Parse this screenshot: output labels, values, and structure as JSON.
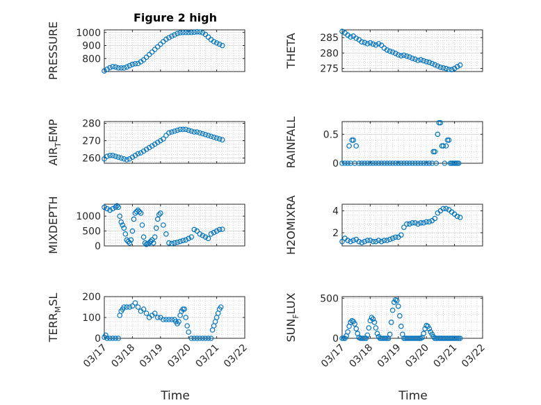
{
  "figure": {
    "title": "Figure 2 high",
    "time_label": "Time",
    "date_ticks": [
      "03/17",
      "03/18",
      "03/19",
      "03/20",
      "03/21",
      "03/22"
    ],
    "marker_color": "#0072BD"
  },
  "chart_data": [
    {
      "type": "scatter",
      "name": "pressure",
      "ylabel": "PRESSURE",
      "ylim": [
        700,
        1020
      ],
      "yticks": [
        800,
        900,
        1000
      ],
      "xlim": [
        0,
        5
      ],
      "x": [
        0.0,
        0.1,
        0.2,
        0.3,
        0.4,
        0.5,
        0.6,
        0.7,
        0.8,
        0.9,
        1.0,
        1.1,
        1.2,
        1.3,
        1.4,
        1.5,
        1.6,
        1.7,
        1.8,
        1.9,
        2.0,
        2.1,
        2.2,
        2.3,
        2.4,
        2.5,
        2.6,
        2.7,
        2.8,
        2.9,
        3.0,
        3.1,
        3.2,
        3.3,
        3.4,
        3.5,
        3.6,
        3.7,
        3.8,
        3.9,
        4.0,
        4.1,
        4.2
      ],
      "y": [
        705,
        718,
        730,
        738,
        735,
        728,
        728,
        728,
        735,
        745,
        755,
        760,
        762,
        775,
        790,
        810,
        830,
        850,
        870,
        890,
        910,
        930,
        948,
        960,
        972,
        982,
        992,
        998,
        1000,
        1000,
        1000,
        1000,
        1002,
        1005,
        1004,
        998,
        985,
        965,
        945,
        930,
        920,
        910,
        900
      ]
    },
    {
      "type": "scatter",
      "name": "theta",
      "ylabel": "THETA",
      "ylim": [
        274,
        287.5
      ],
      "yticks": [
        275,
        280,
        285
      ],
      "xlim": [
        0,
        5
      ],
      "x": [
        0.0,
        0.1,
        0.2,
        0.3,
        0.4,
        0.5,
        0.6,
        0.7,
        0.8,
        0.9,
        1.0,
        1.1,
        1.2,
        1.3,
        1.4,
        1.5,
        1.6,
        1.7,
        1.8,
        1.9,
        2.0,
        2.1,
        2.2,
        2.3,
        2.4,
        2.5,
        2.6,
        2.7,
        2.8,
        2.9,
        3.0,
        3.1,
        3.2,
        3.3,
        3.4,
        3.5,
        3.6,
        3.7,
        3.8,
        3.9,
        4.0,
        4.1,
        4.2
      ],
      "y": [
        287,
        286.5,
        285.8,
        285.2,
        285.5,
        284.8,
        284.3,
        283.6,
        283.4,
        283.0,
        283.3,
        282.9,
        282.6,
        283.0,
        282.5,
        281.6,
        281.0,
        280.6,
        280.3,
        279.9,
        279.4,
        279.1,
        279.3,
        279.0,
        278.7,
        278.3,
        278.0,
        277.6,
        277.8,
        277.5,
        277.2,
        277.0,
        276.6,
        276.2,
        275.8,
        275.4,
        275.2,
        275.0,
        274.7,
        274.6,
        275.0,
        275.6,
        276.1
      ]
    },
    {
      "type": "scatter",
      "name": "air_temp",
      "ylabel": "AIR_TEMP",
      "ylim": [
        257,
        281
      ],
      "yticks": [
        260,
        270,
        280
      ],
      "xlim": [
        0,
        5
      ],
      "x": [
        0.0,
        0.1,
        0.2,
        0.3,
        0.4,
        0.5,
        0.6,
        0.7,
        0.8,
        0.9,
        1.0,
        1.1,
        1.2,
        1.3,
        1.4,
        1.5,
        1.6,
        1.7,
        1.8,
        1.9,
        2.0,
        2.1,
        2.2,
        2.3,
        2.4,
        2.5,
        2.6,
        2.7,
        2.8,
        2.9,
        3.0,
        3.1,
        3.2,
        3.3,
        3.4,
        3.5,
        3.6,
        3.7,
        3.8,
        3.9,
        4.0,
        4.1,
        4.2
      ],
      "y": [
        259.5,
        261.0,
        261.5,
        261.5,
        261.0,
        260.5,
        260.0,
        259.5,
        259.0,
        259.5,
        260.5,
        261.5,
        262.5,
        263.0,
        264.0,
        265.0,
        266.0,
        267.0,
        268.0,
        269.0,
        270.0,
        271.0,
        273.0,
        274.5,
        275.0,
        275.5,
        276.0,
        276.5,
        276.5,
        276.5,
        276.0,
        275.5,
        275.0,
        275.0,
        274.5,
        274.0,
        273.5,
        273.0,
        272.5,
        272.0,
        271.5,
        271.0,
        270.5
      ]
    },
    {
      "type": "scatter",
      "name": "rainfall",
      "ylabel": "RAINFALL",
      "ylim": [
        0,
        0.72
      ],
      "yticks": [
        0,
        0.5
      ],
      "xlim": [
        0,
        5
      ],
      "x": [
        0.0,
        0.1,
        0.2,
        0.25,
        0.3,
        0.35,
        0.4,
        0.45,
        0.5,
        0.6,
        0.7,
        0.8,
        0.9,
        1.0,
        1.1,
        1.2,
        1.3,
        1.4,
        1.5,
        1.6,
        1.7,
        1.8,
        1.9,
        2.0,
        2.1,
        2.2,
        2.3,
        2.4,
        2.5,
        2.6,
        2.7,
        2.8,
        2.9,
        3.0,
        3.1,
        3.2,
        3.25,
        3.3,
        3.35,
        3.4,
        3.45,
        3.5,
        3.55,
        3.6,
        3.65,
        3.7,
        3.75,
        3.8,
        3.85,
        3.9,
        3.95,
        4.0,
        4.05,
        4.1,
        4.15
      ],
      "y": [
        0,
        0,
        0,
        0.3,
        0,
        0.4,
        0.4,
        0,
        0.3,
        0,
        0,
        0,
        0,
        0,
        0,
        0,
        0,
        0,
        0,
        0,
        0,
        0,
        0,
        0,
        0,
        0,
        0,
        0,
        0,
        0,
        0,
        0,
        0,
        0,
        0,
        0,
        0.2,
        0.2,
        0,
        0.5,
        0.7,
        0.7,
        0.3,
        0.3,
        0,
        0.3,
        0.4,
        0.4,
        0,
        0,
        0,
        0,
        0,
        0,
        0
      ]
    },
    {
      "type": "scatter",
      "name": "mixdepth",
      "ylabel": "MIXDEPTH",
      "ylim": [
        0,
        1400
      ],
      "yticks": [
        0,
        500,
        1000
      ],
      "xlim": [
        0,
        5
      ],
      "x": [
        0.0,
        0.1,
        0.2,
        0.3,
        0.4,
        0.45,
        0.5,
        0.55,
        0.6,
        0.65,
        0.7,
        0.75,
        0.8,
        0.85,
        0.9,
        0.95,
        1.0,
        1.05,
        1.1,
        1.15,
        1.2,
        1.25,
        1.3,
        1.35,
        1.4,
        1.45,
        1.5,
        1.55,
        1.6,
        1.65,
        1.7,
        1.75,
        1.8,
        1.85,
        1.9,
        1.95,
        2.0,
        2.1,
        2.2,
        2.3,
        2.4,
        2.5,
        2.6,
        2.7,
        2.8,
        2.9,
        3.0,
        3.1,
        3.2,
        3.3,
        3.4,
        3.5,
        3.6,
        3.7,
        3.8,
        3.9,
        4.0,
        4.1,
        4.2
      ],
      "y": [
        1300,
        1250,
        1200,
        1250,
        1300,
        1350,
        1300,
        1000,
        800,
        700,
        600,
        400,
        200,
        150,
        100,
        200,
        500,
        900,
        1100,
        1150,
        1200,
        1150,
        1100,
        700,
        300,
        100,
        50,
        80,
        100,
        150,
        200,
        100,
        300,
        600,
        900,
        1050,
        1100,
        700,
        400,
        100,
        80,
        100,
        120,
        150,
        180,
        200,
        250,
        300,
        550,
        500,
        400,
        350,
        300,
        250,
        400,
        450,
        500,
        550,
        560
      ]
    },
    {
      "type": "scatter",
      "name": "h2omixra",
      "ylabel": "H2OMIXRA",
      "ylim": [
        0.8,
        4.6
      ],
      "yticks": [
        2,
        4
      ],
      "xlim": [
        0,
        5
      ],
      "x": [
        0.0,
        0.1,
        0.2,
        0.3,
        0.4,
        0.5,
        0.6,
        0.7,
        0.8,
        0.9,
        1.0,
        1.1,
        1.2,
        1.3,
        1.4,
        1.5,
        1.6,
        1.7,
        1.8,
        1.9,
        2.0,
        2.1,
        2.2,
        2.3,
        2.4,
        2.5,
        2.6,
        2.7,
        2.8,
        2.9,
        3.0,
        3.1,
        3.2,
        3.3,
        3.4,
        3.5,
        3.6,
        3.7,
        3.8,
        3.9,
        4.0,
        4.1,
        4.2
      ],
      "y": [
        1.2,
        1.5,
        1.3,
        1.2,
        1.3,
        1.4,
        1.2,
        1.1,
        1.2,
        1.3,
        1.3,
        1.2,
        1.2,
        1.3,
        1.2,
        1.3,
        1.3,
        1.4,
        1.5,
        1.6,
        1.6,
        1.8,
        2.5,
        2.8,
        2.8,
        2.9,
        2.9,
        2.8,
        2.9,
        2.9,
        3.0,
        3.0,
        3.1,
        3.3,
        3.8,
        4.0,
        4.2,
        4.2,
        4.1,
        3.9,
        3.7,
        3.5,
        3.4
      ]
    },
    {
      "type": "scatter",
      "name": "terr_msl",
      "ylabel": "TERR_MSL",
      "ylim": [
        0,
        200
      ],
      "yticks": [
        0,
        100,
        200
      ],
      "xlim": [
        0,
        5
      ],
      "x": [
        0.0,
        0.05,
        0.1,
        0.2,
        0.3,
        0.4,
        0.5,
        0.55,
        0.6,
        0.65,
        0.7,
        0.8,
        0.9,
        1.0,
        1.1,
        1.2,
        1.3,
        1.4,
        1.5,
        1.6,
        1.7,
        1.8,
        1.9,
        2.0,
        2.1,
        2.2,
        2.3,
        2.4,
        2.5,
        2.55,
        2.6,
        2.65,
        2.7,
        2.75,
        2.8,
        2.85,
        2.9,
        2.95,
        3.0,
        3.1,
        3.2,
        3.3,
        3.4,
        3.5,
        3.6,
        3.7,
        3.8,
        3.85,
        3.9,
        3.95,
        4.0,
        4.05,
        4.1,
        4.15
      ],
      "y": [
        5,
        15,
        0,
        0,
        0,
        0,
        0,
        110,
        130,
        140,
        150,
        150,
        150,
        155,
        170,
        150,
        130,
        140,
        120,
        100,
        110,
        120,
        100,
        100,
        90,
        90,
        90,
        90,
        90,
        80,
        70,
        80,
        110,
        130,
        140,
        140,
        100,
        60,
        30,
        0,
        0,
        0,
        0,
        0,
        0,
        0,
        0,
        40,
        60,
        80,
        100,
        120,
        140,
        150
      ]
    },
    {
      "type": "scatter",
      "name": "sun_flux",
      "ylabel": "SUN_FLUX",
      "ylim": [
        0,
        520
      ],
      "yticks": [
        0,
        500
      ],
      "xlim": [
        0,
        5
      ],
      "x": [
        0.0,
        0.05,
        0.1,
        0.15,
        0.2,
        0.25,
        0.3,
        0.35,
        0.4,
        0.45,
        0.5,
        0.55,
        0.6,
        0.65,
        0.7,
        0.75,
        0.8,
        0.85,
        0.9,
        0.95,
        1.0,
        1.05,
        1.1,
        1.15,
        1.2,
        1.25,
        1.3,
        1.35,
        1.4,
        1.45,
        1.5,
        1.55,
        1.6,
        1.65,
        1.7,
        1.75,
        1.8,
        1.85,
        1.9,
        1.95,
        2.0,
        2.05,
        2.1,
        2.15,
        2.2,
        2.25,
        2.3,
        2.35,
        2.4,
        2.45,
        2.5,
        2.55,
        2.6,
        2.65,
        2.7,
        2.75,
        2.8,
        2.85,
        2.9,
        2.95,
        3.0,
        3.05,
        3.1,
        3.15,
        3.2,
        3.25,
        3.3,
        3.35,
        3.4,
        3.45,
        3.5,
        3.55,
        3.6,
        3.65,
        3.7,
        3.75,
        3.8,
        3.85,
        3.9,
        3.95,
        4.0,
        4.05,
        4.1,
        4.15,
        4.2
      ],
      "y": [
        0,
        0,
        0,
        30,
        80,
        150,
        200,
        220,
        210,
        180,
        120,
        60,
        10,
        0,
        0,
        0,
        0,
        0,
        40,
        130,
        220,
        260,
        240,
        200,
        130,
        60,
        20,
        0,
        0,
        0,
        0,
        0,
        0,
        0,
        50,
        200,
        350,
        450,
        480,
        470,
        400,
        280,
        150,
        50,
        0,
        0,
        0,
        0,
        0,
        0,
        0,
        0,
        0,
        0,
        0,
        0,
        0,
        10,
        60,
        120,
        160,
        150,
        120,
        80,
        50,
        20,
        0,
        0,
        0,
        0,
        0,
        0,
        0,
        0,
        0,
        0,
        0,
        0,
        0,
        0,
        0,
        0,
        0,
        0,
        0
      ]
    }
  ]
}
